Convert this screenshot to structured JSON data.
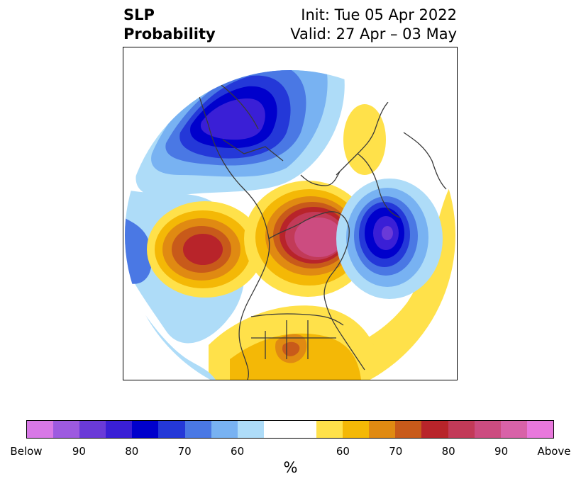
{
  "title": {
    "left_line1": "SLP",
    "left_line2": "Probability",
    "right_line1": "Init: Tue 05 Apr 2022",
    "right_line2": "Valid: 27 Apr – 03 May"
  },
  "colorbar": {
    "colors": [
      "#d878e6",
      "#9d5ae0",
      "#6a3ad8",
      "#3a1fd6",
      "#0000cc",
      "#2438d8",
      "#4a78e4",
      "#78b2f2",
      "#aedcf8",
      "#ffffff",
      "#ffe14a",
      "#f4b806",
      "#e08a12",
      "#c85a1a",
      "#b8242a",
      "#c23a58",
      "#cc4c80",
      "#d862a8",
      "#e878dc"
    ],
    "tick_labels": [
      "Below",
      "90",
      "80",
      "70",
      "60",
      "60",
      "70",
      "80",
      "90",
      "Above"
    ],
    "unit": "%"
  },
  "map": {
    "variable": "SLP",
    "anomalies": [
      {
        "region": "North Pacific / Bering",
        "sign": "below",
        "level": 80
      },
      {
        "region": "Gulf of Alaska",
        "sign": "above",
        "level": 80
      },
      {
        "region": "Greenland",
        "sign": "above",
        "level": 90
      },
      {
        "region": "Scandinavia",
        "sign": "above",
        "level": 60
      },
      {
        "region": "Eastern North Atlantic",
        "sign": "below",
        "level": 90
      },
      {
        "region": "Southeast US",
        "sign": "above",
        "level": 70
      }
    ]
  }
}
